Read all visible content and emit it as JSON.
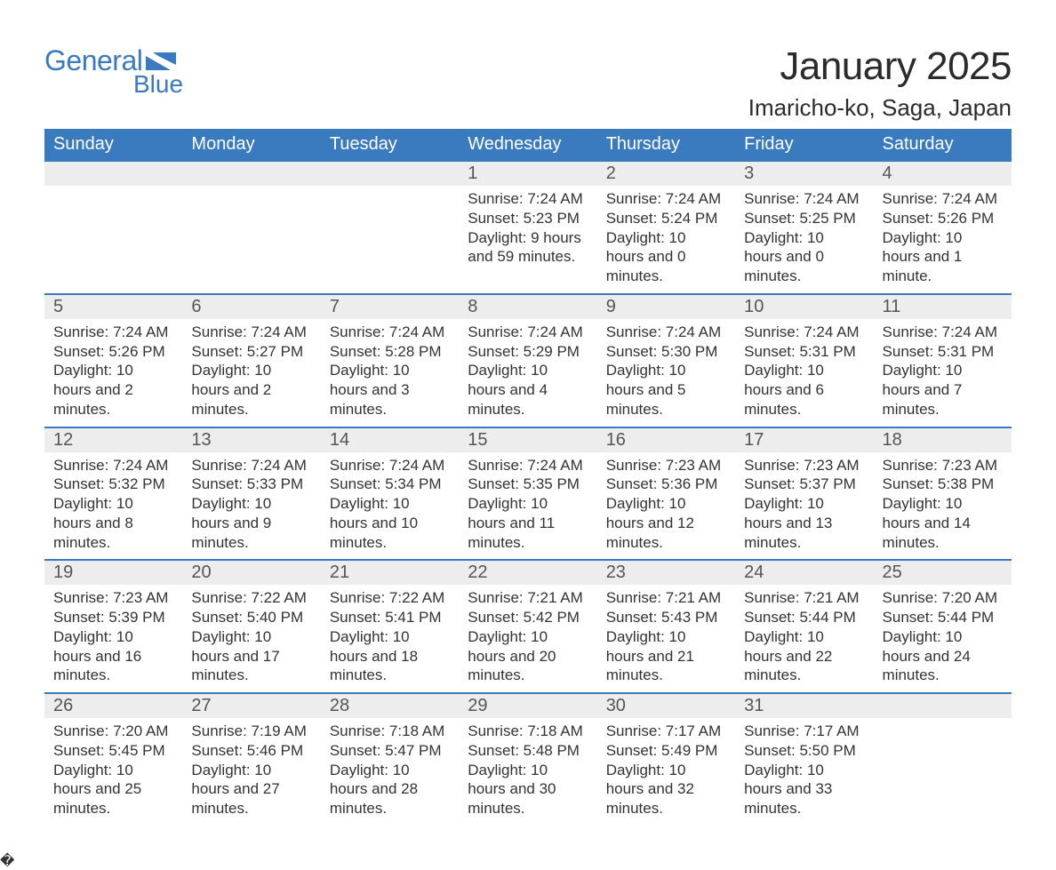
{
  "brand": {
    "word1": "General",
    "word2": "Blue",
    "color": "#3a7bbf"
  },
  "title": "January 2025",
  "location": "Imaricho-ko, Saga, Japan",
  "colors": {
    "header_bg": "#3a7bbf",
    "header_text": "#ffffff",
    "daynum_bg": "#ededed",
    "daynum_border": "#3a7bbf",
    "body_text": "#333333",
    "page_bg": "#ffffff"
  },
  "typography": {
    "title_fontsize": 44,
    "location_fontsize": 26,
    "dayheader_fontsize": 20,
    "daynum_fontsize": 20,
    "body_fontsize": 17
  },
  "day_headers": [
    "Sunday",
    "Monday",
    "Tuesday",
    "Wednesday",
    "Thursday",
    "Friday",
    "Saturday"
  ],
  "weeks": [
    [
      null,
      null,
      null,
      {
        "n": "1",
        "sunrise": "Sunrise: 7:24 AM",
        "sunset": "Sunset: 5:23 PM",
        "daylight": "Daylight: 9 hours and 59 minutes."
      },
      {
        "n": "2",
        "sunrise": "Sunrise: 7:24 AM",
        "sunset": "Sunset: 5:24 PM",
        "daylight": "Daylight: 10 hours and 0 minutes."
      },
      {
        "n": "3",
        "sunrise": "Sunrise: 7:24 AM",
        "sunset": "Sunset: 5:25 PM",
        "daylight": "Daylight: 10 hours and 0 minutes."
      },
      {
        "n": "4",
        "sunrise": "Sunrise: 7:24 AM",
        "sunset": "Sunset: 5:26 PM",
        "daylight": "Daylight: 10 hours and 1 minute."
      }
    ],
    [
      {
        "n": "5",
        "sunrise": "Sunrise: 7:24 AM",
        "sunset": "Sunset: 5:26 PM",
        "daylight": "Daylight: 10 hours and 2 minutes."
      },
      {
        "n": "6",
        "sunrise": "Sunrise: 7:24 AM",
        "sunset": "Sunset: 5:27 PM",
        "daylight": "Daylight: 10 hours and 2 minutes."
      },
      {
        "n": "7",
        "sunrise": "Sunrise: 7:24 AM",
        "sunset": "Sunset: 5:28 PM",
        "daylight": "Daylight: 10 hours and 3 minutes."
      },
      {
        "n": "8",
        "sunrise": "Sunrise: 7:24 AM",
        "sunset": "Sunset: 5:29 PM",
        "daylight": "Daylight: 10 hours and 4 minutes."
      },
      {
        "n": "9",
        "sunrise": "Sunrise: 7:24 AM",
        "sunset": "Sunset: 5:30 PM",
        "daylight": "Daylight: 10 hours and 5 minutes."
      },
      {
        "n": "10",
        "sunrise": "Sunrise: 7:24 AM",
        "sunset": "Sunset: 5:31 PM",
        "daylight": "Daylight: 10 hours and 6 minutes."
      },
      {
        "n": "11",
        "sunrise": "Sunrise: 7:24 AM",
        "sunset": "Sunset: 5:31 PM",
        "daylight": "Daylight: 10 hours and 7 minutes."
      }
    ],
    [
      {
        "n": "12",
        "sunrise": "Sunrise: 7:24 AM",
        "sunset": "Sunset: 5:32 PM",
        "daylight": "Daylight: 10 hours and 8 minutes."
      },
      {
        "n": "13",
        "sunrise": "Sunrise: 7:24 AM",
        "sunset": "Sunset: 5:33 PM",
        "daylight": "Daylight: 10 hours and 9 minutes."
      },
      {
        "n": "14",
        "sunrise": "Sunrise: 7:24 AM",
        "sunset": "Sunset: 5:34 PM",
        "daylight": "Daylight: 10 hours and 10 minutes."
      },
      {
        "n": "15",
        "sunrise": "Sunrise: 7:24 AM",
        "sunset": "Sunset: 5:35 PM",
        "daylight": "Daylight: 10 hours and 11 minutes."
      },
      {
        "n": "16",
        "sunrise": "Sunrise: 7:23 AM",
        "sunset": "Sunset: 5:36 PM",
        "daylight": "Daylight: 10 hours and 12 minutes."
      },
      {
        "n": "17",
        "sunrise": "Sunrise: 7:23 AM",
        "sunset": "Sunset: 5:37 PM",
        "daylight": "Daylight: 10 hours and 13 minutes."
      },
      {
        "n": "18",
        "sunrise": "Sunrise: 7:23 AM",
        "sunset": "Sunset: 5:38 PM",
        "daylight": "Daylight: 10 hours and 14 minutes."
      }
    ],
    [
      {
        "n": "19",
        "sunrise": "Sunrise: 7:23 AM",
        "sunset": "Sunset: 5:39 PM",
        "daylight": "Daylight: 10 hours and 16 minutes."
      },
      {
        "n": "20",
        "sunrise": "Sunrise: 7:22 AM",
        "sunset": "Sunset: 5:40 PM",
        "daylight": "Daylight: 10 hours and 17 minutes."
      },
      {
        "n": "21",
        "sunrise": "Sunrise: 7:22 AM",
        "sunset": "Sunset: 5:41 PM",
        "daylight": "Daylight: 10 hours and 18 minutes."
      },
      {
        "n": "22",
        "sunrise": "Sunrise: 7:21 AM",
        "sunset": "Sunset: 5:42 PM",
        "daylight": "Daylight: 10 hours and 20 minutes."
      },
      {
        "n": "23",
        "sunrise": "Sunrise: 7:21 AM",
        "sunset": "Sunset: 5:43 PM",
        "daylight": "Daylight: 10 hours and 21 minutes."
      },
      {
        "n": "24",
        "sunrise": "Sunrise: 7:21 AM",
        "sunset": "Sunset: 5:44 PM",
        "daylight": "Daylight: 10 hours and 22 minutes."
      },
      {
        "n": "25",
        "sunrise": "Sunrise: 7:20 AM",
        "sunset": "Sunset: 5:44 PM",
        "daylight": "Daylight: 10 hours and 24 minutes."
      }
    ],
    [
      {
        "n": "26",
        "sunrise": "Sunrise: 7:20 AM",
        "sunset": "Sunset: 5:45 PM",
        "daylight": "Daylight: 10 hours and 25 minutes."
      },
      {
        "n": "27",
        "sunrise": "Sunrise: 7:19 AM",
        "sunset": "Sunset: 5:46 PM",
        "daylight": "Daylight: 10 hours and 27 minutes."
      },
      {
        "n": "28",
        "sunrise": "Sunrise: 7:18 AM",
        "sunset": "Sunset: 5:47 PM",
        "daylight": "Daylight: 10 hours and 28 minutes."
      },
      {
        "n": "29",
        "sunrise": "Sunrise: 7:18 AM",
        "sunset": "Sunset: 5:48 PM",
        "daylight": "Daylight: 10 hours and 30 minutes."
      },
      {
        "n": "30",
        "sunrise": "Sunrise: 7:17 AM",
        "sunset": "Sunset: 5:49 PM",
        "daylight": "Daylight: 10 hours and 32 minutes."
      },
      {
        "n": "31",
        "sunrise": "Sunrise: 7:17 AM",
        "sunset": "Sunset: 5:50 PM",
        "daylight": "Daylight: 10 hours and 33 minutes."
      },
      null
    ]
  ]
}
